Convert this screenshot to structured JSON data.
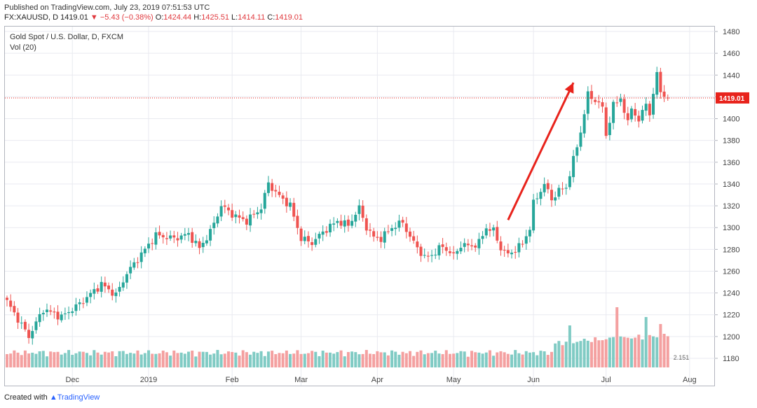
{
  "header": {
    "published": "Published on TradingView.com, July 23, 2019 07:51:53 UTC",
    "symbol": "FX:XAUUSD, D",
    "last": "1419.01",
    "change": "−5.43 (−0.38%)",
    "open_label": "O:",
    "open": "1424.44",
    "high_label": "H:",
    "high": "1425.51",
    "low_label": "L:",
    "low": "1414.11",
    "close_label": "C:",
    "close": "1419.01"
  },
  "legend": {
    "title": "Gold Spot / U.S. Dollar, D, FXCM",
    "volume": "Vol (20)"
  },
  "footer": {
    "created_with": "Created with",
    "brand": "TradingView"
  },
  "colors": {
    "up": "#26a69a",
    "down": "#ef5350",
    "vol_up": "#80cbc4",
    "vol_down": "#f4a0a0",
    "arrow": "#e8231c",
    "last_price": "#e8231c"
  },
  "chart_data": {
    "type": "candlestick",
    "title": "Gold Spot / U.S. Dollar, D, FXCM",
    "ylim": [
      1170,
      1485
    ],
    "y_ticks": [
      1180,
      1200,
      1220,
      1240,
      1260,
      1280,
      1300,
      1320,
      1340,
      1360,
      1380,
      1400,
      1420,
      1440,
      1460,
      1480
    ],
    "x_ticks": [
      {
        "label": "Dec",
        "index": 18
      },
      {
        "label": "2019",
        "index": 39
      },
      {
        "label": "Feb",
        "index": 62
      },
      {
        "label": "Mar",
        "index": 81
      },
      {
        "label": "Apr",
        "index": 102
      },
      {
        "label": "May",
        "index": 123
      },
      {
        "label": "Jun",
        "index": 145
      },
      {
        "label": "Jul",
        "index": 165
      },
      {
        "label": "Aug",
        "index": 188
      }
    ],
    "last_price": 1419.01,
    "last_price_label": "1419.01",
    "volume_badge": "2.151",
    "trend_arrow": {
      "from_index": 138,
      "from_price": 1307,
      "to_index": 156,
      "to_price": 1433
    },
    "waypoints": [
      [
        0,
        1232
      ],
      [
        6,
        1200
      ],
      [
        10,
        1225
      ],
      [
        15,
        1218
      ],
      [
        20,
        1230
      ],
      [
        26,
        1248
      ],
      [
        30,
        1238
      ],
      [
        33,
        1258
      ],
      [
        38,
        1280
      ],
      [
        41,
        1293
      ],
      [
        46,
        1290
      ],
      [
        50,
        1294
      ],
      [
        53,
        1281
      ],
      [
        56,
        1296
      ],
      [
        59,
        1320
      ],
      [
        63,
        1310
      ],
      [
        66,
        1306
      ],
      [
        70,
        1318
      ],
      [
        72,
        1341
      ],
      [
        74,
        1332
      ],
      [
        78,
        1320
      ],
      [
        81,
        1290
      ],
      [
        84,
        1286
      ],
      [
        87,
        1296
      ],
      [
        91,
        1306
      ],
      [
        94,
        1302
      ],
      [
        97,
        1318
      ],
      [
        99,
        1300
      ],
      [
        101,
        1291
      ],
      [
        103,
        1290
      ],
      [
        106,
        1300
      ],
      [
        109,
        1305
      ],
      [
        111,
        1291
      ],
      [
        113,
        1282
      ],
      [
        115,
        1272
      ],
      [
        117,
        1275
      ],
      [
        120,
        1283
      ],
      [
        123,
        1274
      ],
      [
        125,
        1284
      ],
      [
        128,
        1283
      ],
      [
        130,
        1286
      ],
      [
        132,
        1300
      ],
      [
        134,
        1297
      ],
      [
        136,
        1281
      ],
      [
        138,
        1275
      ],
      [
        140,
        1280
      ],
      [
        142,
        1285
      ],
      [
        144,
        1300
      ],
      [
        145,
        1322
      ],
      [
        148,
        1340
      ],
      [
        150,
        1326
      ],
      [
        152,
        1334
      ],
      [
        154,
        1337
      ],
      [
        156,
        1362
      ],
      [
        158,
        1388
      ],
      [
        160,
        1422
      ],
      [
        162,
        1417
      ],
      [
        164,
        1410
      ],
      [
        165,
        1385
      ],
      [
        167,
        1412
      ],
      [
        169,
        1419
      ],
      [
        171,
        1395
      ],
      [
        172,
        1411
      ],
      [
        174,
        1397
      ],
      [
        176,
        1415
      ],
      [
        177,
        1405
      ],
      [
        178,
        1420
      ],
      [
        179,
        1443
      ],
      [
        180,
        1425
      ],
      [
        181,
        1422
      ],
      [
        182,
        1419.01
      ]
    ],
    "n_candles": 183
  }
}
